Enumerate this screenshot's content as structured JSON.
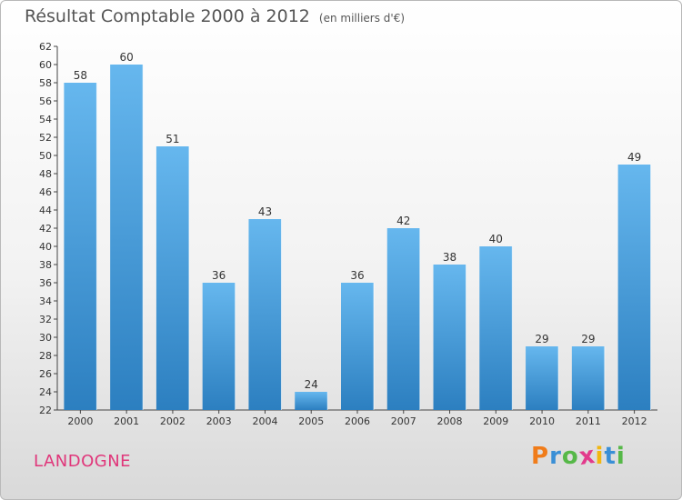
{
  "header": {
    "title": "Résultat Comptable 2000 à 2012",
    "unit": "(en milliers d'€)"
  },
  "footer": {
    "commune": "LANDOGNE",
    "logo": [
      "P",
      "r",
      "o",
      "x",
      "i",
      "t",
      "i"
    ]
  },
  "colors": {
    "bar_light": "#66b7ee",
    "bar_dark": "#2c7fc0",
    "commune": "#e0367a",
    "logo": [
      "#f07c1a",
      "#3a8fd6",
      "#56b848",
      "#e23a8c",
      "#f2b711",
      "#3a8fd6",
      "#56b848"
    ]
  },
  "chart_data": {
    "type": "bar",
    "title": "Résultat Comptable 2000 à 2012",
    "ylabel": "(en milliers d'€)",
    "xlabel": "",
    "categories": [
      "2000",
      "2001",
      "2002",
      "2003",
      "2004",
      "2005",
      "2006",
      "2007",
      "2008",
      "2009",
      "2010",
      "2011",
      "2012"
    ],
    "values": [
      58,
      60,
      51,
      36,
      43,
      24,
      36,
      42,
      38,
      40,
      29,
      29,
      49
    ],
    "ylim": [
      22,
      62
    ],
    "yticks": [
      22,
      24,
      26,
      28,
      30,
      32,
      34,
      36,
      38,
      40,
      42,
      44,
      46,
      48,
      50,
      52,
      54,
      56,
      58,
      60,
      62
    ],
    "grid": false,
    "legend": "none"
  }
}
